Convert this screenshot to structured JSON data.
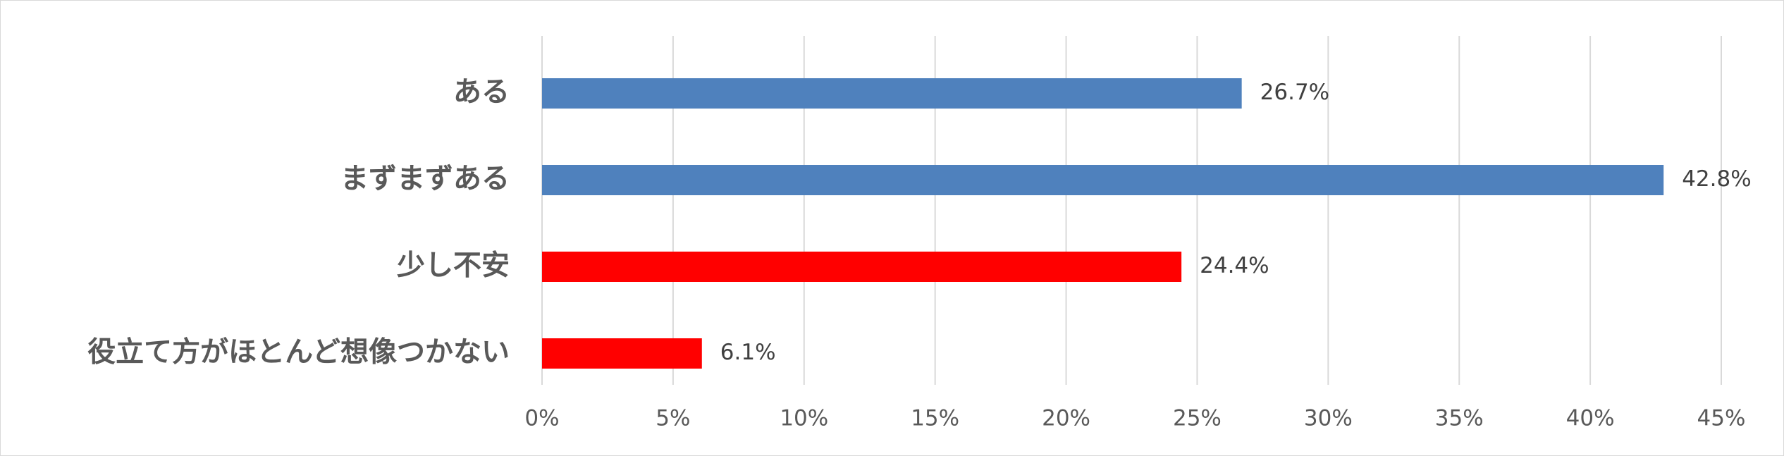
{
  "chart_data": {
    "type": "bar",
    "orientation": "horizontal",
    "categories": [
      "ある",
      "まずまずある",
      "少し不安",
      "役立て方がほとんど想像つかない"
    ],
    "values": [
      26.7,
      42.8,
      24.4,
      6.1
    ],
    "value_labels": [
      "26.7%",
      "42.8%",
      "24.4%",
      "6.1%"
    ],
    "bar_colors": [
      "#4f81bd",
      "#4f81bd",
      "#ff0000",
      "#ff0000"
    ],
    "xlim": [
      0,
      45
    ],
    "xticks": [
      0,
      5,
      10,
      15,
      20,
      25,
      30,
      35,
      40,
      45
    ],
    "xtick_labels": [
      "0%",
      "5%",
      "10%",
      "15%",
      "20%",
      "25%",
      "30%",
      "35%",
      "40%",
      "45%"
    ],
    "grid": "vertical",
    "legend": "none",
    "title": "",
    "xlabel": "",
    "ylabel": ""
  }
}
